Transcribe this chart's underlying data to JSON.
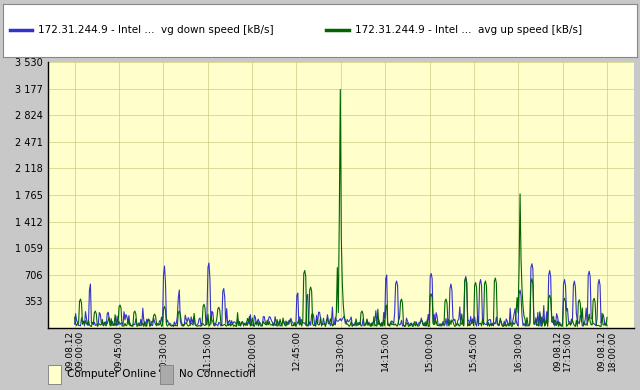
{
  "legend_entries": [
    "172.31.244.9 - Intel ...  vg down speed [kB/s]",
    "172.31.244.9 - Intel ...  avg up speed [kB/s]"
  ],
  "line_colors": [
    "#3333cc",
    "#006600"
  ],
  "background_color": "#ffffcc",
  "outer_bg": "#c8c8c8",
  "yticks": [
    0,
    353,
    706,
    1059,
    1412,
    1765,
    2118,
    2471,
    2824,
    3177,
    3530
  ],
  "ytick_labels": [
    "",
    "353",
    "706",
    "1 059",
    "1 412",
    "1 765",
    "2 118",
    "2 471",
    "2 824",
    "3 177",
    "3 530"
  ],
  "xtick_labels": [
    "09.08.12\n09:00:00",
    "09:45:00",
    "10:30:00",
    "11:15:00",
    "12:00:00",
    "12:45:00",
    "13:30:00",
    "14:15:00",
    "15:00:00",
    "15:45:00",
    "16:30:00",
    "09.08.12\n17:15:00",
    "09.08.12\n18:00:00"
  ],
  "ymax": 3530,
  "ymin": 0,
  "footer_items": [
    "Computer Online",
    "No Connection"
  ],
  "footer_colors": [
    "#ffffcc",
    "#aaaaaa"
  ],
  "n_points": 540
}
